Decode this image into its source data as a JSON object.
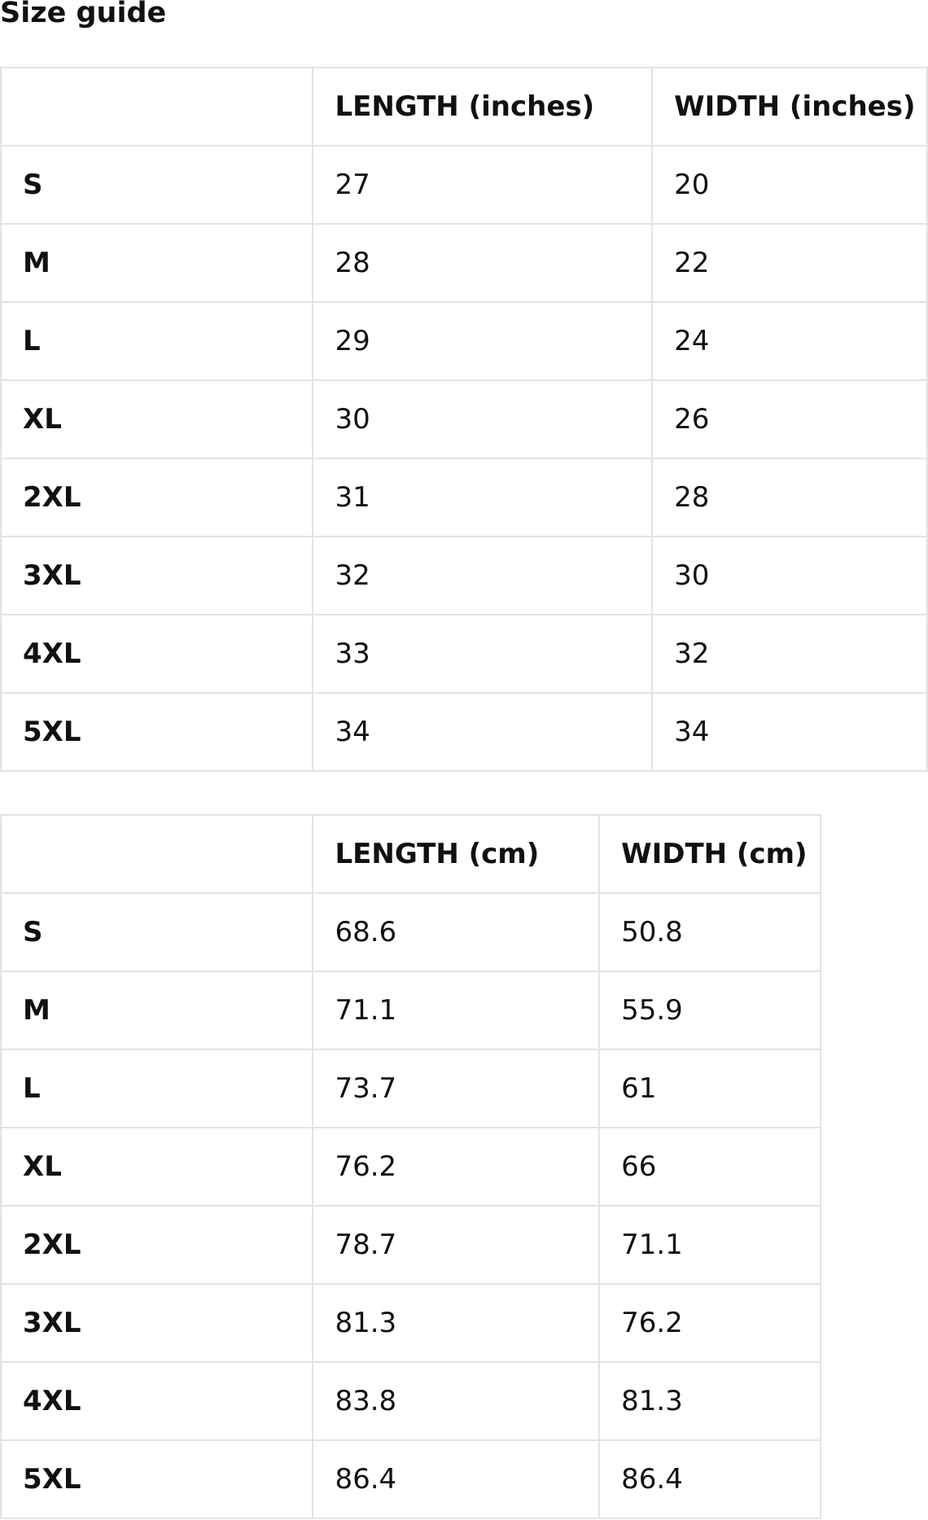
{
  "title": "Size guide",
  "inches_table": {
    "headers": [
      "",
      "LENGTH (inches)",
      "WIDTH (inches)"
    ],
    "rows": [
      [
        "S",
        "27",
        "20"
      ],
      [
        "M",
        "28",
        "22"
      ],
      [
        "L",
        "29",
        "24"
      ],
      [
        "XL",
        "30",
        "26"
      ],
      [
        "2XL",
        "31",
        "28"
      ],
      [
        "3XL",
        "32",
        "30"
      ],
      [
        "4XL",
        "33",
        "32"
      ],
      [
        "5XL",
        "34",
        "34"
      ]
    ]
  },
  "cm_table": {
    "headers": [
      "",
      "LENGTH (cm)",
      "WIDTH (cm)"
    ],
    "rows": [
      [
        "S",
        "68.6",
        "50.8"
      ],
      [
        "M",
        "71.1",
        "55.9"
      ],
      [
        "L",
        "73.7",
        "61"
      ],
      [
        "XL",
        "76.2",
        "66"
      ],
      [
        "2XL",
        "78.7",
        "71.1"
      ],
      [
        "3XL",
        "81.3",
        "76.2"
      ],
      [
        "4XL",
        "83.8",
        "81.3"
      ],
      [
        "5XL",
        "86.4",
        "86.4"
      ]
    ]
  }
}
